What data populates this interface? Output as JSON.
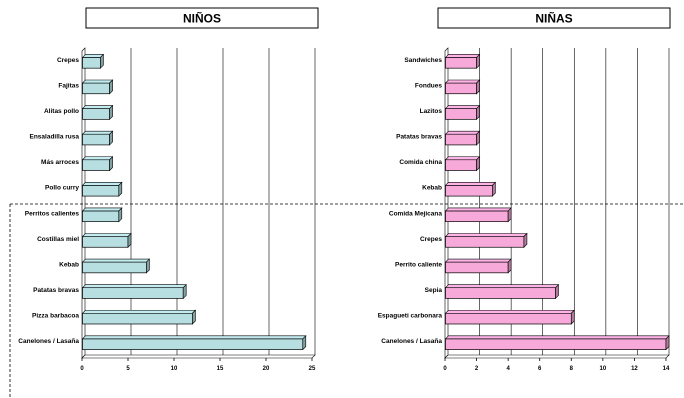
{
  "chart_data": [
    {
      "type": "bar",
      "orientation": "horizontal",
      "title": "NIÑOS",
      "categories": [
        "Crepes",
        "Fajitas",
        "Alitas pollo",
        "Ensaladilla rusa",
        "Más arroces",
        "Pollo curry",
        "Perritos calientes",
        "Costillas miel",
        "Kebab",
        "Patatas bravas",
        "Pizza barbacoa",
        "Canelones / Lasaña"
      ],
      "values": [
        2,
        3,
        3,
        3,
        3,
        4,
        4,
        5,
        7,
        11,
        12,
        24
      ],
      "xlim": [
        0,
        25
      ],
      "xticks": [
        0,
        5,
        10,
        15,
        20,
        25
      ],
      "grid": true,
      "color": "#b7dfe1"
    },
    {
      "type": "bar",
      "orientation": "horizontal",
      "title": "NIÑAS",
      "categories": [
        "Sandwiches",
        "Fondues",
        "Lazitos",
        "Patatas bravas",
        "Comida china",
        "Kebab",
        "Comida Mejicana",
        "Crepes",
        "Perrito caliente",
        "Sepia",
        "Espagueti carbonara",
        "Canelones / Lasaña"
      ],
      "values": [
        2,
        2,
        2,
        2,
        2,
        3,
        4,
        5,
        4,
        7,
        8,
        14
      ],
      "xlim": [
        0,
        14
      ],
      "xticks": [
        0,
        2,
        4,
        6,
        8,
        10,
        12,
        14
      ],
      "grid": true,
      "color": "#f7a9d9"
    }
  ]
}
